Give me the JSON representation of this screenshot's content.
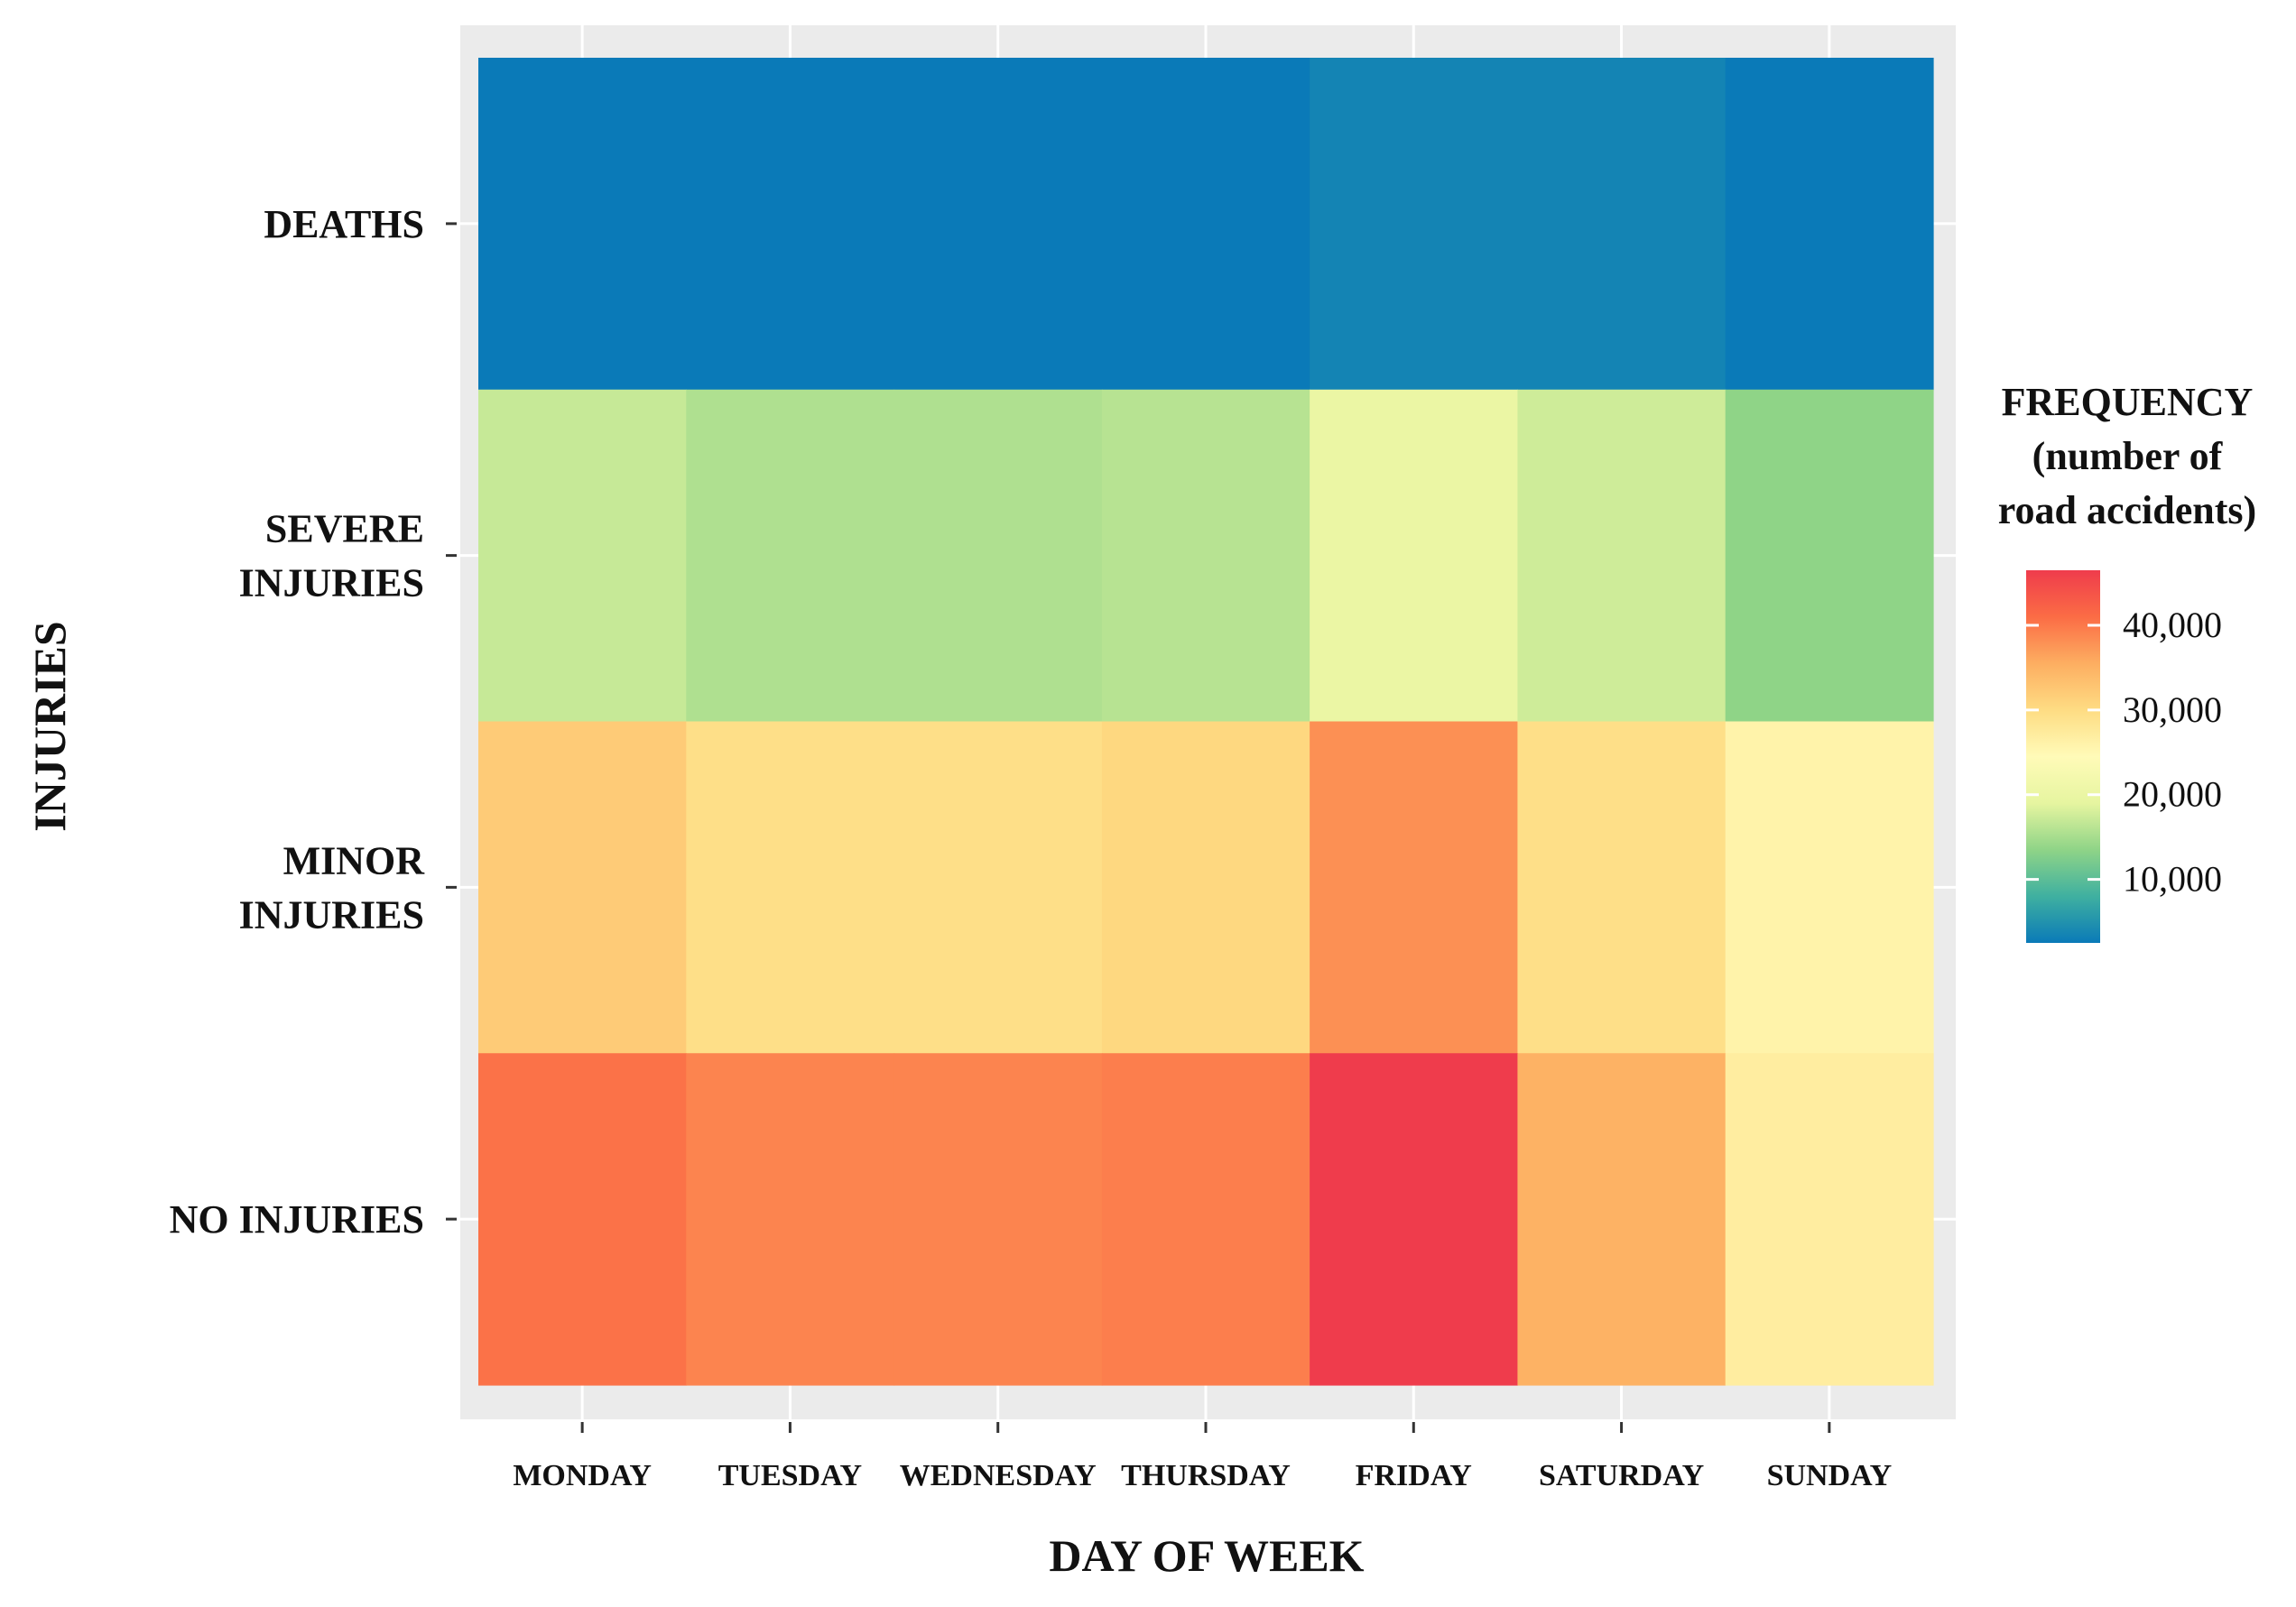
{
  "chart_data": {
    "type": "heatmap",
    "xlabel": "DAY OF WEEK",
    "ylabel": "INJURIES",
    "x_categories": [
      "MONDAY",
      "TUESDAY",
      "WEDNESDAY",
      "THURSDAY",
      "FRIDAY",
      "SATURDAY",
      "SUNDAY"
    ],
    "y_categories": [
      "DEATHS",
      "SEVERE\nINJURIES",
      "MINOR\nINJURIES",
      "NO INJURIES"
    ],
    "values": [
      [
        2500,
        2500,
        2500,
        2500,
        3500,
        3500,
        2500
      ],
      [
        17000,
        15500,
        15500,
        16000,
        20000,
        17500,
        13500
      ],
      [
        32000,
        29500,
        29500,
        30500,
        38000,
        29500,
        26000
      ],
      [
        40500,
        39000,
        39000,
        39500,
        46500,
        35000,
        27000
      ]
    ],
    "legend": {
      "title_lines": [
        "FREQUENCY",
        "(number of",
        "road accidents)"
      ],
      "ticks": [
        10000,
        20000,
        30000,
        40000
      ],
      "tick_labels": [
        "10,000",
        "20,000",
        "30,000",
        "40,000"
      ],
      "range": [
        2500,
        46500
      ],
      "colors": [
        "#0a7ab8",
        "#3fb0a0",
        "#8fd487",
        "#e6f5a0",
        "#fffbb8",
        "#fedc83",
        "#fdae61",
        "#fb6c45",
        "#ef3c4c"
      ],
      "placement": "right"
    },
    "colors": {
      "panel_background": "#ebebeb",
      "grid": "#ffffff"
    },
    "grid": true
  }
}
